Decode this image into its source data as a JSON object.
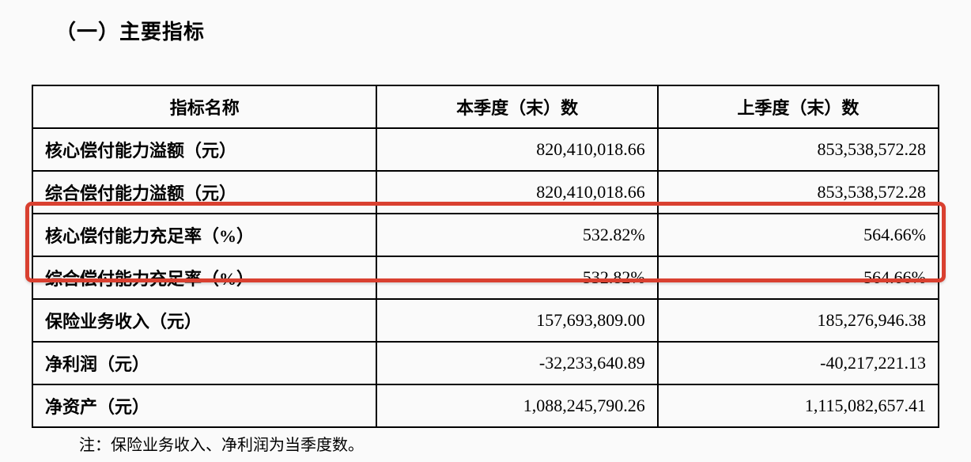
{
  "title": "（一）主要指标",
  "table": {
    "headers": [
      "指标名称",
      "本季度（末）数",
      "上季度（末）数"
    ],
    "rows": [
      {
        "label": "核心偿付能力溢额（元）",
        "current": "820,410,018.66",
        "previous": "853,538,572.28"
      },
      {
        "label": "综合偿付能力溢额（元）",
        "current": "820,410,018.66",
        "previous": "853,538,572.28"
      },
      {
        "label": "核心偿付能力充足率（%）",
        "current": "532.82%",
        "previous": "564.66%"
      },
      {
        "label": "综合偿付能力充足率（%）",
        "current": "532.82%",
        "previous": "564.66%"
      },
      {
        "label": "保险业务收入（元）",
        "current": "157,693,809.00",
        "previous": "185,276,946.38"
      },
      {
        "label": "净利润（元）",
        "current": "-32,233,640.89",
        "previous": "-40,217,221.13"
      },
      {
        "label": "净资产（元）",
        "current": "1,088,245,790.26",
        "previous": "1,115,082,657.41"
      }
    ]
  },
  "footnote": "注：保险业务收入、净利润为当季度数。",
  "highlight": {
    "row_start": 2,
    "row_end": 3,
    "color": "#d94030"
  },
  "styling": {
    "background_color": "#fafafa",
    "border_color": "#000000",
    "text_color": "#000000",
    "title_fontsize": 26,
    "header_fontsize": 22,
    "cell_fontsize": 22,
    "footnote_fontsize": 20
  }
}
